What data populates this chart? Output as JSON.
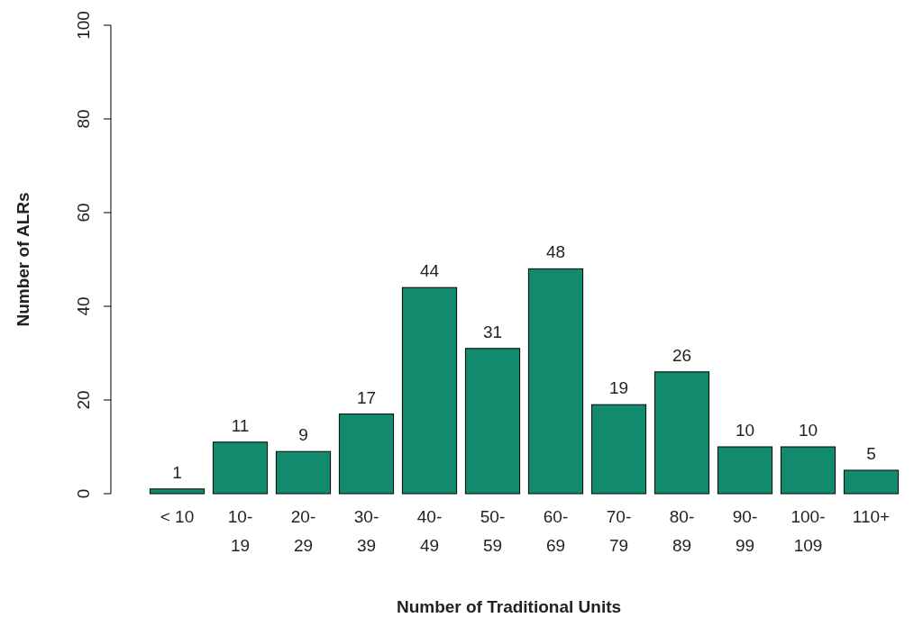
{
  "chart_data": {
    "type": "bar",
    "xlabel": "Number of Traditional Units",
    "ylabel": "Number of ALRs",
    "categories": [
      "< 10",
      "10-19",
      "20-29",
      "30-39",
      "40-49",
      "50-59",
      "60-69",
      "70-79",
      "80-89",
      "90-99",
      "100-109",
      "110+"
    ],
    "values": [
      1,
      11,
      9,
      17,
      44,
      31,
      48,
      19,
      26,
      10,
      10,
      5
    ],
    "color": "#118a6e",
    "ylim": [
      0,
      100
    ],
    "yticks": [
      0,
      20,
      40,
      60,
      80,
      100
    ],
    "data_labels": true,
    "grid": false
  }
}
